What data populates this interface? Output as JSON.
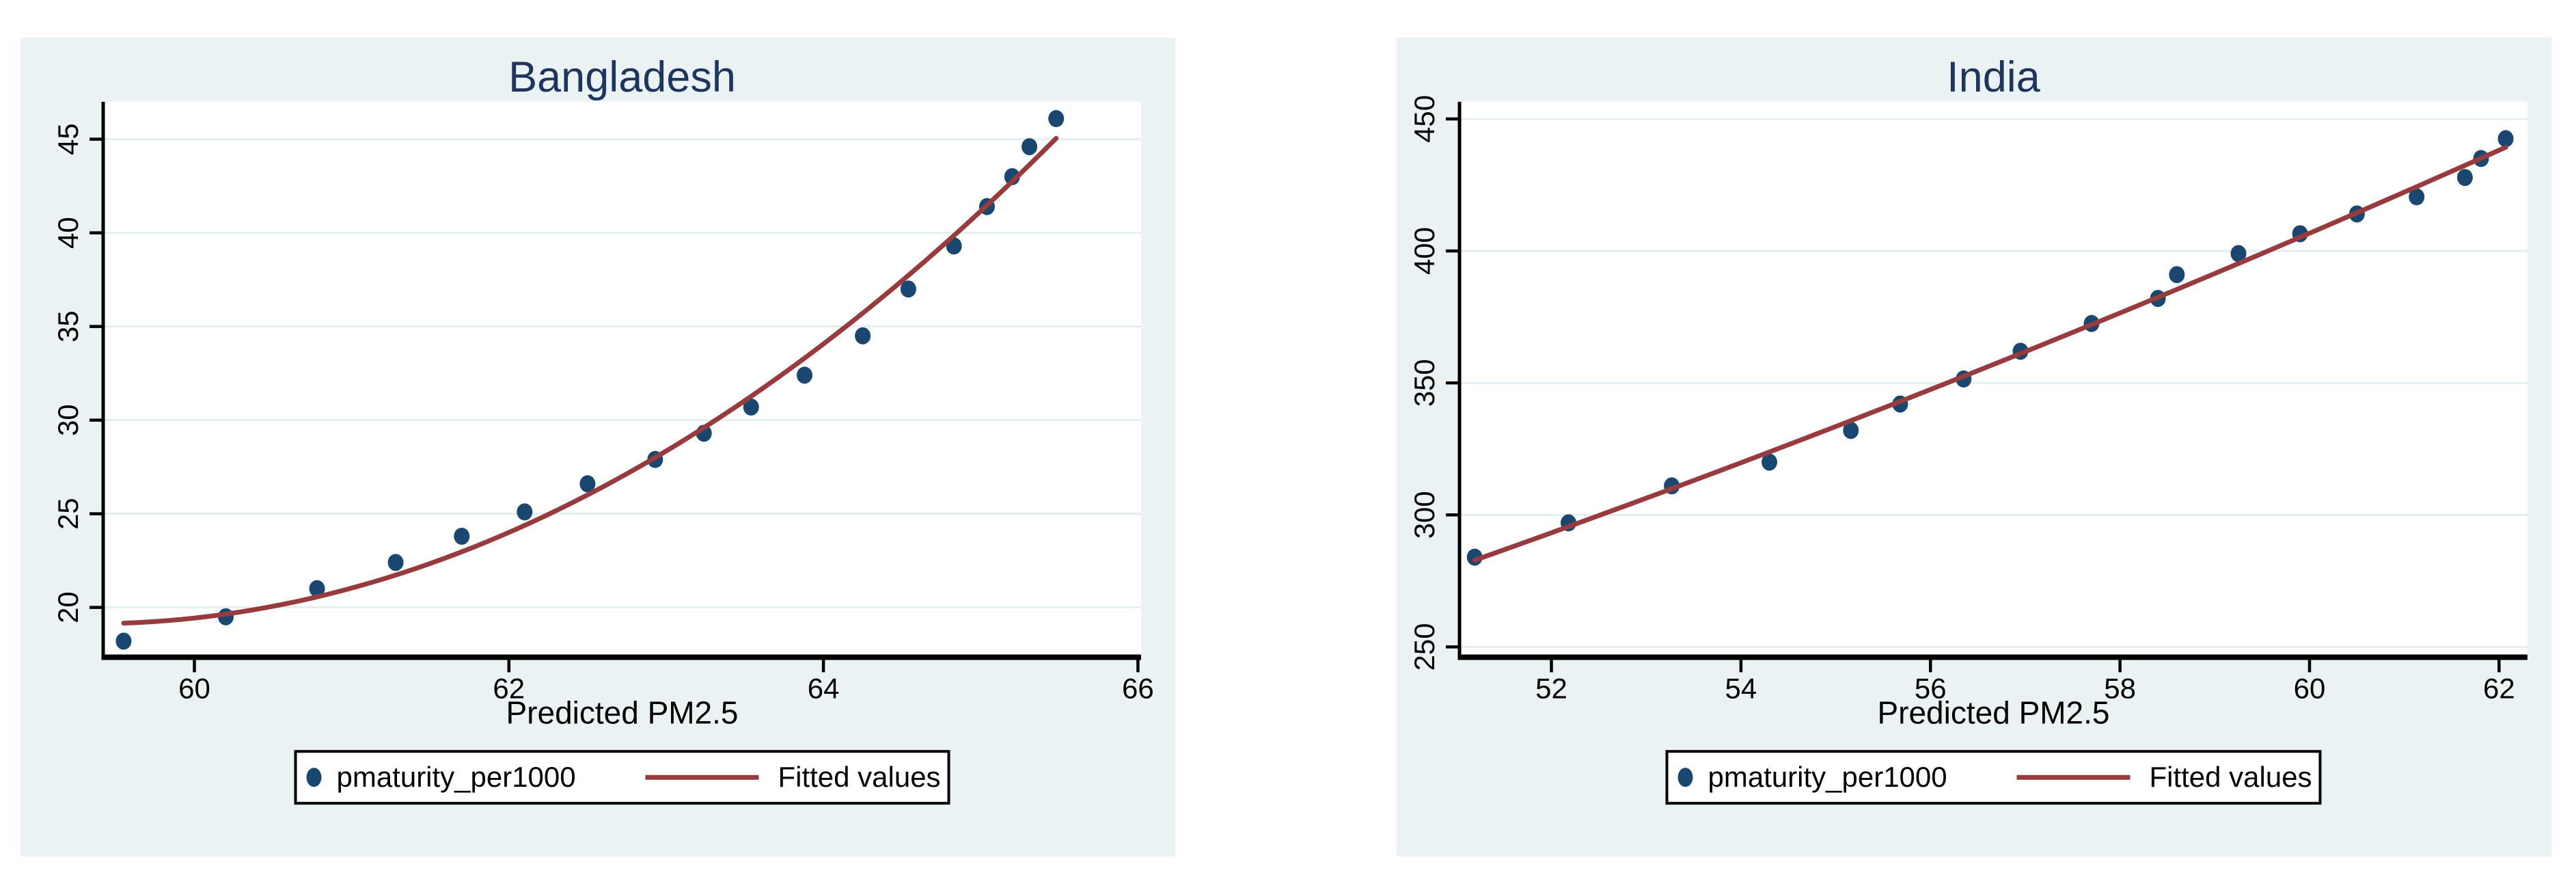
{
  "page": {
    "background": "#ffffff"
  },
  "style": {
    "panel_bg": "#eaf2f3",
    "plot_bg": "#ffffff",
    "grid_color": "#e4eef0",
    "axis_color": "#000000",
    "text_color": "#000000",
    "title_color": "#1f355e",
    "marker_color": "#1a476f",
    "fit_color": "#983b3e",
    "legend_bg": "#ffffff",
    "legend_border": "#000000"
  },
  "chart_data": [
    {
      "type": "scatter",
      "title": "Bangladesh",
      "xlabel": "Predicted PM2.5",
      "ylabel": "",
      "x_ticks": [
        60,
        62,
        64,
        66
      ],
      "y_ticks": [
        20,
        25,
        30,
        35,
        40,
        45
      ],
      "x_range": [
        59.42,
        66.02
      ],
      "y_range": [
        17.34,
        47.0
      ],
      "grid": true,
      "legend_position": "bottom-center",
      "series": [
        {
          "name": "pmaturity_per1000",
          "kind": "scatter",
          "x": [
            59.55,
            60.2,
            60.78,
            61.28,
            61.7,
            62.1,
            62.5,
            62.93,
            63.24,
            63.54,
            63.88,
            64.25,
            64.54,
            64.83,
            65.04,
            65.2,
            65.31,
            65.48
          ],
          "y": [
            18.2,
            19.5,
            21.0,
            22.4,
            23.8,
            25.1,
            26.6,
            27.9,
            29.3,
            30.7,
            32.4,
            34.5,
            37.0,
            39.3,
            41.4,
            43.0,
            44.6,
            46.1
          ]
        },
        {
          "name": "Fitted values",
          "kind": "quadratic_fit_line"
        }
      ]
    },
    {
      "type": "scatter",
      "title": "India",
      "xlabel": "Predicted PM2.5",
      "ylabel": "",
      "x_ticks": [
        52,
        54,
        56,
        58,
        60,
        62
      ],
      "y_ticks": [
        250,
        300,
        350,
        400,
        450
      ],
      "x_range": [
        51.03,
        62.3
      ],
      "y_range": [
        246.1,
        456.5
      ],
      "grid": true,
      "legend_position": "bottom-center",
      "series": [
        {
          "name": "pmaturity_per1000",
          "kind": "scatter",
          "x": [
            51.19,
            52.18,
            53.27,
            54.3,
            55.16,
            55.68,
            56.35,
            56.95,
            57.7,
            58.4,
            58.6,
            59.25,
            59.9,
            60.5,
            61.13,
            61.64,
            61.81,
            62.07
          ],
          "y": [
            284,
            297,
            311,
            320,
            332,
            342,
            351.5,
            362,
            372.5,
            382,
            391,
            399,
            406.5,
            414,
            420.5,
            427.8,
            435,
            442.5
          ]
        },
        {
          "name": "Fitted values",
          "kind": "quadratic_fit_line"
        }
      ]
    }
  ]
}
